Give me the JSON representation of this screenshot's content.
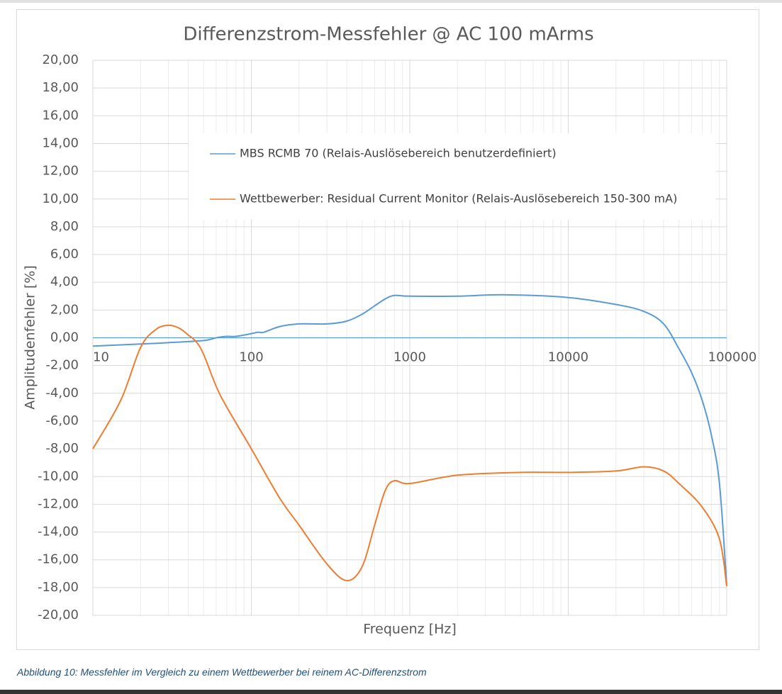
{
  "chart_data": {
    "type": "line",
    "title": "Differenzstrom-Messfehler @ AC 100 mArms",
    "x_label": "Frequenz [Hz]",
    "y_label": "Amplitudenfehler [%]",
    "xscale": "log",
    "grid": true,
    "minor_grid": true,
    "xlim": [
      10,
      100000
    ],
    "xticks": [
      10,
      100,
      1000,
      10000,
      100000
    ],
    "ylim": [
      -20,
      20
    ],
    "yticks": [
      {
        "value": 20,
        "label": "20,00"
      },
      {
        "value": 18,
        "label": "18,00"
      },
      {
        "value": 16,
        "label": "16,00"
      },
      {
        "value": 14,
        "label": "14,00"
      },
      {
        "value": 12,
        "label": "12,00"
      },
      {
        "value": 10,
        "label": "10,00"
      },
      {
        "value": 8,
        "label": "8,00"
      },
      {
        "value": 6,
        "label": "6,00"
      },
      {
        "value": 4,
        "label": "4,00"
      },
      {
        "value": 2,
        "label": "2,00"
      },
      {
        "value": 0,
        "label": "0,00"
      },
      {
        "value": -2,
        "label": "-2,00"
      },
      {
        "value": -4,
        "label": "-4,00"
      },
      {
        "value": -6,
        "label": "-6,00"
      },
      {
        "value": -8,
        "label": "-8,00"
      },
      {
        "value": -10,
        "label": "-10,00"
      },
      {
        "value": -12,
        "label": "-12,00"
      },
      {
        "value": -14,
        "label": "-14,00"
      },
      {
        "value": -16,
        "label": "-16,00"
      },
      {
        "value": -18,
        "label": "-18,00"
      },
      {
        "value": -20,
        "label": "-20,00"
      }
    ],
    "series": [
      {
        "name": "MBS RCMB 70 (Relais-Auslösebereich benutzerdefiniert)",
        "color": "#5b9bd5",
        "x": [
          10,
          20,
          30,
          50,
          60,
          70,
          80,
          100,
          110,
          120,
          150,
          200,
          300,
          400,
          500,
          600,
          700,
          800,
          1000,
          2000,
          4000,
          10000,
          20000,
          30000,
          40000,
          50000,
          60000,
          70000,
          80000,
          90000,
          100000
        ],
        "values": [
          -0.6,
          -0.45,
          -0.35,
          -0.2,
          0.0,
          0.1,
          0.1,
          0.3,
          0.4,
          0.4,
          0.8,
          1.0,
          1.0,
          1.2,
          1.7,
          2.3,
          2.8,
          3.05,
          3.0,
          3.0,
          3.1,
          2.9,
          2.4,
          1.9,
          1.0,
          -0.8,
          -2.5,
          -4.5,
          -7.0,
          -10.5,
          -17.8
        ]
      },
      {
        "name": "Wettbewerber: Residual Current Monitor (Relais-Auslösebereich 150-300 mA)",
        "color": "#ed7d31",
        "x": [
          10,
          15,
          20,
          25,
          30,
          35,
          40,
          45,
          50,
          60,
          70,
          100,
          150,
          200,
          300,
          400,
          500,
          600,
          700,
          800,
          1000,
          2000,
          5000,
          10000,
          20000,
          30000,
          40000,
          50000,
          70000,
          90000,
          100000
        ],
        "values": [
          -8.0,
          -4.5,
          -0.7,
          0.6,
          0.9,
          0.7,
          0.2,
          -0.3,
          -1.2,
          -3.5,
          -5.0,
          -8.0,
          -11.5,
          -13.5,
          -16.3,
          -17.5,
          -16.5,
          -13.5,
          -11.0,
          -10.3,
          -10.5,
          -9.9,
          -9.7,
          -9.7,
          -9.6,
          -9.3,
          -9.6,
          -10.5,
          -12.2,
          -14.5,
          -17.9
        ]
      }
    ]
  },
  "caption": "Abbildung 10: Messfehler im Vergleich zu einem Wettbewerber bei reinem AC-Differenzstrom"
}
